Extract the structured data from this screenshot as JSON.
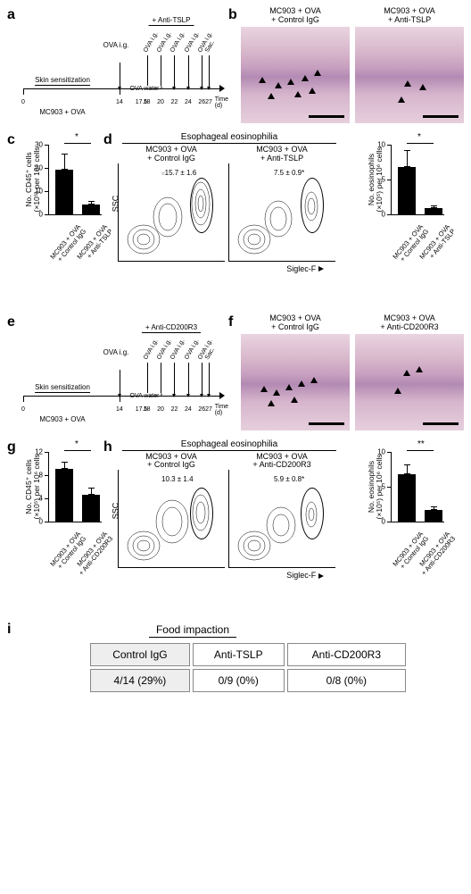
{
  "colors": {
    "bg": "#ffffff",
    "ink": "#000000",
    "tableBorder": "#888888",
    "tableShade": "#eeeeee",
    "histoGradient": [
      "#e9d4e0",
      "#d9b8cc",
      "#c79fbf",
      "#b38ab3",
      "#d6b5cc",
      "#e6cfdd"
    ]
  },
  "panels": {
    "a": {
      "label": "a",
      "treatmentBanner": "+ Anti-TSLP",
      "sensitization": "Skin sensitization",
      "strip": "MC903 + OVA",
      "ovaWater": "OVA water",
      "timeUnit": "Time\n(d)",
      "ticks": [
        0,
        14,
        17.5,
        18,
        20,
        22,
        24,
        26,
        27
      ],
      "tickLabels": [
        "0",
        "14",
        "17.5",
        "18",
        "20",
        "22",
        "24",
        "26",
        "27"
      ],
      "rotLabels": [
        "OVA i.g.",
        "OVA i.g.",
        "OVA i.g.",
        "OVA i.g.",
        "OVA i.g.",
        "OVA i.g.",
        "Sac."
      ],
      "firstArrowLabel": "OVA i.g."
    },
    "b": {
      "label": "b",
      "left": "MC903 + OVA\n+ Control IgG",
      "right": "MC903 + OVA\n+ Anti-TSLP"
    },
    "c": {
      "label": "c",
      "ylabel": "No. CD45⁺ cells\n(×10⁵) per 10⁶ cells",
      "yticks": [
        0,
        10,
        20,
        30
      ],
      "bars": [
        {
          "x": "MC903 + OVA\n+ Control IgG",
          "val": 19,
          "err": 7
        },
        {
          "x": "MC903 + OVA\n+ Anti-TSLP",
          "val": 4,
          "err": 1.5
        }
      ],
      "sig": "*"
    },
    "d": {
      "label": "d",
      "heading": "Esophageal eosinophilia",
      "leftTitle": "MC903 + OVA\n+ Control IgG",
      "rightTitle": "MC903 + OVA\n+ Anti-TSLP",
      "leftGate": "15.7 ± 1.6",
      "rightGate": "7.5 ± 0.9*",
      "xaxis": "Siglec-F",
      "yaxis": "SSC",
      "bar": {
        "ylabel": "No. eosinophils\n(×10⁵) per 10⁶ cells",
        "yticks": [
          0,
          5,
          10
        ],
        "bars": [
          {
            "x": "MC903 + OVA\n+ Control IgG",
            "val": 6.8,
            "err": 2.4
          },
          {
            "x": "MC903 + OVA\n+ Anti-TSLP",
            "val": 0.9,
            "err": 0.4
          }
        ],
        "sig": "*"
      }
    },
    "e": {
      "label": "e",
      "treatmentBanner": "+ Anti-CD200R3",
      "sensitization": "Skin sensitization",
      "strip": "MC903 + OVA",
      "ovaWater": "OVA water",
      "timeUnit": "Time\n(d)",
      "ticks": [
        0,
        14,
        17.5,
        18,
        20,
        22,
        24,
        26,
        27
      ],
      "tickLabels": [
        "0",
        "14",
        "17.5",
        "18",
        "20",
        "22",
        "24",
        "26",
        "27"
      ],
      "rotLabels": [
        "OVA i.g.",
        "OVA i.g.",
        "OVA i.g.",
        "OVA i.g.",
        "OVA i.g.",
        "OVA i.g.",
        "Sac."
      ],
      "firstArrowLabel": "OVA i.g."
    },
    "f": {
      "label": "f",
      "left": "MC903 + OVA\n+ Control IgG",
      "right": "MC903 + OVA\n+ Anti-CD200R3"
    },
    "g": {
      "label": "g",
      "ylabel": "No. CD45⁺ cells\n(×10⁵) per 10⁶ cells",
      "yticks": [
        0,
        4,
        8,
        12
      ],
      "bars": [
        {
          "x": "MC903 + OVA\n+ Control IgG",
          "val": 9,
          "err": 1.2
        },
        {
          "x": "MC903 + OVA\n+ Anti-CD200R3",
          "val": 4.5,
          "err": 1.3
        }
      ],
      "sig": "*"
    },
    "h": {
      "label": "h",
      "heading": "Esophageal eosinophilia",
      "leftTitle": "MC903 + OVA\n+ Control IgG",
      "rightTitle": "MC903 + OVA\n+ Anti-CD200R3",
      "leftGate": "10.3 ± 1.4",
      "rightGate": "5.9 ± 0.8*",
      "xaxis": "Siglec-F",
      "yaxis": "SSC",
      "bar": {
        "ylabel": "No. eosinophils\n(×10⁵) per 10⁶ cells",
        "yticks": [
          0,
          5,
          10
        ],
        "bars": [
          {
            "x": "MC903 + OVA\n+ Control IgG",
            "val": 6.8,
            "err": 1.4
          },
          {
            "x": "MC903 + OVA\n+ Anti-CD200R3",
            "val": 1.6,
            "err": 0.5
          }
        ],
        "sig": "**"
      }
    },
    "i": {
      "label": "i",
      "heading": "Food impaction",
      "columns": [
        "Control IgG",
        "Anti-TSLP",
        "Anti-CD200R3"
      ],
      "values": [
        "4/14 (29%)",
        "0/9 (0%)",
        "0/8 (0%)"
      ]
    }
  }
}
